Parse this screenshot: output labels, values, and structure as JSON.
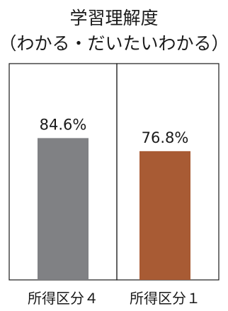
{
  "chart_data": {
    "type": "bar",
    "title_lines": [
      "学習理解度",
      "（わかる・だいたいわかる）"
    ],
    "categories": [
      "所得区分４",
      "所得区分１"
    ],
    "values": [
      84.6,
      76.8
    ],
    "value_labels": [
      "84.6%",
      "76.8%"
    ],
    "colors": [
      "#808184",
      "#a85b34"
    ],
    "ylim": [
      0,
      100
    ],
    "grid": false,
    "legend": "none"
  }
}
